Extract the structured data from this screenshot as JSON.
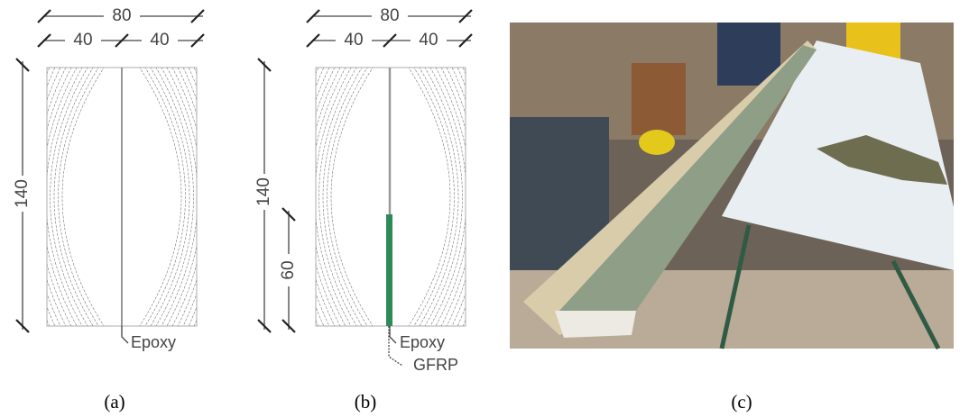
{
  "panels": [
    {
      "caption": "(a)",
      "width_total": "80",
      "width_left": "40",
      "width_right": "40",
      "height": "140",
      "labels": [
        "Epoxy"
      ]
    },
    {
      "caption": "(b)",
      "width_total": "80",
      "width_left": "40",
      "width_right": "40",
      "height": "140",
      "reinforcement_height": "60",
      "labels": [
        "Epoxy",
        "GFRP"
      ]
    },
    {
      "caption": "(c)"
    }
  ]
}
